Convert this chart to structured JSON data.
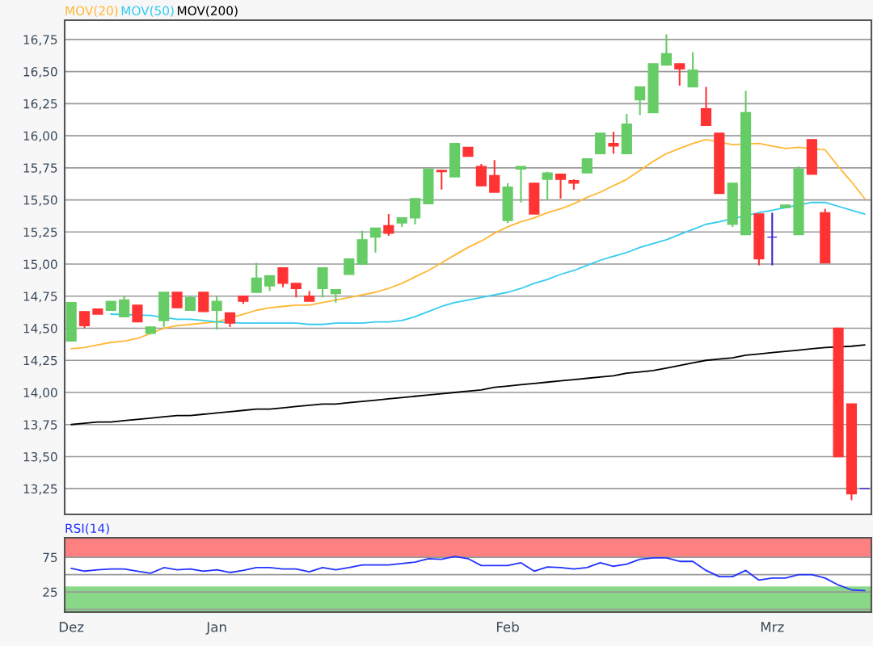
{
  "chart_data": [
    {
      "type": "candlestick",
      "ohlc": [
        [
          14.4,
          14.7,
          14.4,
          14.7
        ],
        [
          14.63,
          14.63,
          14.5,
          14.52
        ],
        [
          14.65,
          14.65,
          14.61,
          14.61
        ],
        [
          14.64,
          14.71,
          14.64,
          14.71
        ],
        [
          14.59,
          14.75,
          14.59,
          14.72
        ],
        [
          14.68,
          14.68,
          14.55,
          14.55
        ],
        [
          14.46,
          14.51,
          14.46,
          14.51
        ],
        [
          14.56,
          14.78,
          14.51,
          14.78
        ],
        [
          14.78,
          14.78,
          14.66,
          14.66
        ],
        [
          14.64,
          14.75,
          14.64,
          14.74
        ],
        [
          14.78,
          14.78,
          14.63,
          14.63
        ],
        [
          14.64,
          14.75,
          14.49,
          14.71
        ],
        [
          14.62,
          14.62,
          14.51,
          14.54
        ],
        [
          14.75,
          14.75,
          14.69,
          14.71
        ],
        [
          14.78,
          15.01,
          14.78,
          14.89
        ],
        [
          14.83,
          14.91,
          14.79,
          14.91
        ],
        [
          14.97,
          14.97,
          14.82,
          14.85
        ],
        [
          14.85,
          14.85,
          14.74,
          14.81
        ],
        [
          14.75,
          14.79,
          14.71,
          14.71
        ],
        [
          14.81,
          14.97,
          14.74,
          14.97
        ],
        [
          14.77,
          14.8,
          14.7,
          14.8
        ],
        [
          14.92,
          15.04,
          14.92,
          15.04
        ],
        [
          15.0,
          15.26,
          15.0,
          15.19
        ],
        [
          15.21,
          15.28,
          15.09,
          15.28
        ],
        [
          15.3,
          15.39,
          15.22,
          15.24
        ],
        [
          15.32,
          15.36,
          15.29,
          15.36
        ],
        [
          15.36,
          15.51,
          15.31,
          15.51
        ],
        [
          15.47,
          15.74,
          15.47,
          15.74
        ],
        [
          15.73,
          15.73,
          15.58,
          15.72
        ],
        [
          15.68,
          15.94,
          15.68,
          15.94
        ],
        [
          15.91,
          15.91,
          15.84,
          15.84
        ],
        [
          15.76,
          15.78,
          15.61,
          15.61
        ],
        [
          15.69,
          15.81,
          15.56,
          15.56
        ],
        [
          15.34,
          15.63,
          15.32,
          15.6
        ],
        [
          15.74,
          15.76,
          15.48,
          15.76
        ],
        [
          15.63,
          15.63,
          15.39,
          15.39
        ],
        [
          15.66,
          15.72,
          15.5,
          15.71
        ],
        [
          15.7,
          15.7,
          15.51,
          15.66
        ],
        [
          15.65,
          15.66,
          15.58,
          15.63
        ],
        [
          15.71,
          15.82,
          15.71,
          15.82
        ],
        [
          15.86,
          16.02,
          15.86,
          16.02
        ],
        [
          15.94,
          16.03,
          15.86,
          15.92
        ],
        [
          15.86,
          16.17,
          15.86,
          16.09
        ],
        [
          16.28,
          16.38,
          16.16,
          16.38
        ],
        [
          16.18,
          16.56,
          16.18,
          16.56
        ],
        [
          16.55,
          16.79,
          16.55,
          16.64
        ],
        [
          16.56,
          16.56,
          16.39,
          16.52
        ],
        [
          16.38,
          16.65,
          16.38,
          16.51
        ],
        [
          16.21,
          16.38,
          16.08,
          16.08
        ],
        [
          16.02,
          16.02,
          15.55,
          15.55
        ],
        [
          15.31,
          15.63,
          15.29,
          15.63
        ],
        [
          15.23,
          16.35,
          15.23,
          16.18
        ],
        [
          15.39,
          15.39,
          14.99,
          15.04
        ],
        [
          15.21,
          15.4,
          14.99,
          15.21
        ],
        [
          15.44,
          15.46,
          15.44,
          15.46
        ],
        [
          15.23,
          15.76,
          15.23,
          15.74
        ],
        [
          15.97,
          15.97,
          15.7,
          15.7
        ],
        [
          15.4,
          15.43,
          15.01,
          15.01
        ],
        [
          14.5,
          14.5,
          13.5,
          13.5
        ],
        [
          13.91,
          13.91,
          13.16,
          13.21
        ],
        [
          13.25,
          13.25,
          13.25,
          13.25
        ]
      ],
      "colors": [
        "#66cc66",
        "#ff3333",
        "#ff3333",
        "#66cc66",
        "#66cc66",
        "#ff3333",
        "#66cc66",
        "#66cc66",
        "#ff3333",
        "#66cc66",
        "#ff3333",
        "#66cc66",
        "#ff3333",
        "#ff3333",
        "#66cc66",
        "#66cc66",
        "#ff3333",
        "#ff3333",
        "#ff3333",
        "#66cc66",
        "#66cc66",
        "#66cc66",
        "#66cc66",
        "#66cc66",
        "#ff3333",
        "#66cc66",
        "#66cc66",
        "#66cc66",
        "#ff3333",
        "#66cc66",
        "#ff3333",
        "#ff3333",
        "#ff3333",
        "#66cc66",
        "#66cc66",
        "#ff3333",
        "#66cc66",
        "#ff3333",
        "#ff3333",
        "#66cc66",
        "#66cc66",
        "#ff3333",
        "#66cc66",
        "#66cc66",
        "#66cc66",
        "#66cc66",
        "#ff3333",
        "#66cc66",
        "#ff3333",
        "#ff3333",
        "#66cc66",
        "#66cc66",
        "#ff3333",
        "#4422cc",
        "#66cc66",
        "#66cc66",
        "#ff3333",
        "#ff3333",
        "#ff3333",
        "#ff3333",
        "#4422cc"
      ],
      "series": [
        {
          "name": "MOV(20)",
          "color": "#ffb733",
          "type": "line",
          "values": [
            14.34,
            14.35,
            14.37,
            14.39,
            14.4,
            14.42,
            14.46,
            14.5,
            14.52,
            14.53,
            14.54,
            14.55,
            null,
            14.61,
            14.64,
            14.66,
            14.67,
            14.68,
            14.68,
            14.7,
            14.72,
            14.74,
            14.76,
            14.78,
            14.81,
            14.85,
            14.9,
            14.95,
            15.01,
            15.07,
            15.13,
            15.18,
            15.24,
            15.29,
            15.33,
            15.36,
            15.4,
            15.43,
            15.47,
            15.52,
            15.56,
            15.61,
            15.66,
            15.73,
            15.8,
            15.86,
            15.9,
            15.94,
            15.97,
            null,
            15.93,
            null,
            15.94,
            15.92,
            15.9,
            15.91,
            null,
            15.89,
            15.76,
            15.64,
            15.51
          ]
        },
        {
          "name": "MOV(50)",
          "color": "#33ccee",
          "type": "line",
          "values": [
            null,
            null,
            null,
            14.61,
            null,
            null,
            14.6,
            null,
            14.57,
            14.57,
            14.56,
            14.55,
            null,
            14.54,
            14.54,
            14.54,
            14.54,
            14.54,
            14.53,
            14.53,
            14.54,
            14.54,
            14.54,
            14.55,
            14.55,
            14.56,
            14.59,
            14.63,
            14.67,
            14.7,
            14.72,
            14.74,
            14.76,
            14.78,
            14.81,
            14.85,
            14.88,
            14.92,
            14.95,
            14.99,
            15.03,
            15.06,
            15.09,
            15.13,
            15.16,
            15.19,
            15.23,
            15.27,
            15.31,
            15.33,
            null,
            null,
            15.4,
            15.42,
            15.44,
            null,
            15.48,
            15.48,
            15.45,
            15.42,
            15.39
          ]
        },
        {
          "name": "MOV(200)",
          "color": "#000000",
          "type": "line",
          "values": [
            13.75,
            13.76,
            13.77,
            13.77,
            13.78,
            13.79,
            13.8,
            13.81,
            13.82,
            13.82,
            13.83,
            13.84,
            13.85,
            13.86,
            13.87,
            13.87,
            13.88,
            13.89,
            13.9,
            13.91,
            13.91,
            13.92,
            13.93,
            13.94,
            13.95,
            13.96,
            13.97,
            13.98,
            13.99,
            14.0,
            14.01,
            14.02,
            14.04,
            14.05,
            14.06,
            14.07,
            14.08,
            14.09,
            14.1,
            14.11,
            14.12,
            14.13,
            14.15,
            14.16,
            14.17,
            14.19,
            14.21,
            14.23,
            14.25,
            14.26,
            14.27,
            14.29,
            14.3,
            14.31,
            14.32,
            14.33,
            14.34,
            14.35,
            null,
            14.36,
            14.37
          ]
        }
      ],
      "ylim": [
        13.05,
        16.9
      ],
      "yticks": [
        {
          "value": 13.25,
          "label": "13,25"
        },
        {
          "value": 13.5,
          "label": "13,50"
        },
        {
          "value": 13.75,
          "label": "13,75"
        },
        {
          "value": 14,
          "label": "14,00"
        },
        {
          "value": 14.25,
          "label": "14,25"
        },
        {
          "value": 14.5,
          "label": "14,50"
        },
        {
          "value": 14.75,
          "label": "14,75"
        },
        {
          "value": 15,
          "label": "15,00"
        },
        {
          "value": 15.25,
          "label": "15,25"
        },
        {
          "value": 15.5,
          "label": "15,50"
        },
        {
          "value": 15.75,
          "label": "15,75"
        },
        {
          "value": 16,
          "label": "16,00"
        },
        {
          "value": 16.25,
          "label": "16,25"
        },
        {
          "value": 16.5,
          "label": "16,50"
        },
        {
          "value": 16.75,
          "label": "16,75"
        }
      ],
      "grid": "y",
      "legend": "top left",
      "tick_labels": "y"
    },
    {
      "type": "line",
      "categories": [
        "Dez",
        null,
        null,
        null,
        null,
        null,
        null,
        null,
        null,
        null,
        null,
        "Jan",
        null,
        null,
        null,
        null,
        null,
        null,
        null,
        null,
        null,
        null,
        null,
        null,
        null,
        null,
        null,
        null,
        null,
        null,
        null,
        null,
        null,
        "Feb",
        null,
        null,
        null,
        null,
        null,
        null,
        null,
        null,
        null,
        null,
        null,
        null,
        null,
        null,
        null,
        null,
        null,
        null,
        null,
        "Mrz",
        null,
        null,
        null,
        null,
        null,
        null,
        null
      ],
      "series": [
        {
          "name": "RSI(14)",
          "color": "#2233ff",
          "values": [
            59,
            55,
            57,
            58,
            58,
            55,
            52,
            60,
            57,
            58,
            55,
            57,
            53,
            56,
            60,
            60,
            58,
            58,
            54,
            60,
            57,
            60,
            64,
            64,
            64,
            66,
            68,
            73,
            72,
            76,
            73,
            63,
            63,
            63,
            67,
            55,
            61,
            60,
            58,
            60,
            67,
            62,
            65,
            72,
            74,
            74,
            69,
            69,
            56,
            47,
            47,
            56,
            42,
            45,
            45,
            50,
            50,
            45,
            35,
            28,
            27
          ]
        }
      ],
      "ylim": [
        -4,
        103
      ],
      "yticks": [
        {
          "value": 0,
          "label": null
        },
        25,
        {
          "value": 50,
          "label": null
        },
        75
      ],
      "bands": [
        {
          "axis": "y",
          "from": 75,
          "to": 103,
          "color": "#ff8080"
        },
        {
          "axis": "y",
          "from": -4,
          "to": 33,
          "color": "#88d888"
        }
      ],
      "grid": "y",
      "legend": "top left"
    }
  ]
}
